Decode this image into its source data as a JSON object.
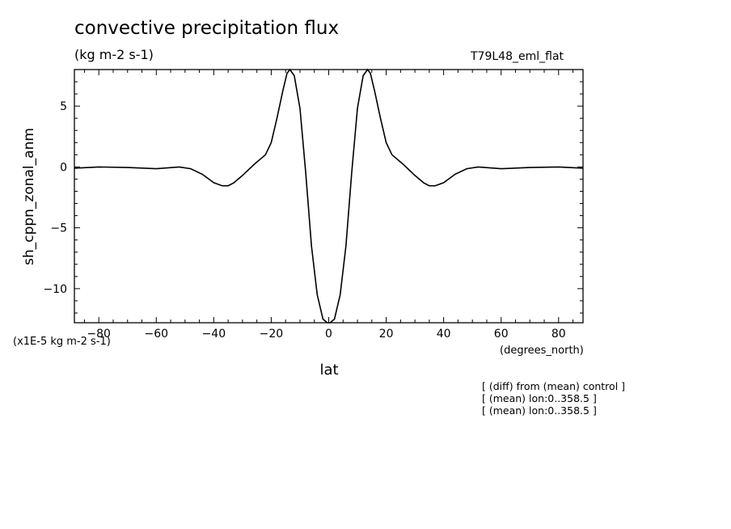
{
  "chart_data": {
    "type": "line",
    "title": "convective precipitation flux",
    "units": "(kg m-2 s-1)",
    "run_label": "T79L48_eml_flat",
    "ylabel": "sh_cppn_zonal_anm",
    "xlabel": "lat",
    "x_units": "(degrees_north)",
    "y_scale_note": "(x1E-5 kg m-2 s-1)",
    "xlim": [
      -88.5,
      88.5
    ],
    "ylim": [
      -12.8,
      8.0
    ],
    "x_ticks": [
      -80,
      -60,
      -40,
      -20,
      0,
      20,
      40,
      60,
      80
    ],
    "y_ticks": [
      -10,
      -5,
      0,
      5
    ],
    "grid": false,
    "series": [
      {
        "x": [
          -88.5,
          -80,
          -70,
          -60,
          -52,
          -48,
          -44,
          -40,
          -37,
          -35,
          -33,
          -30,
          -26,
          -22,
          -20,
          -18,
          -16,
          -14.5,
          -13.5,
          -12,
          -10,
          -8,
          -6,
          -4,
          -2,
          -0.5,
          0,
          0.5,
          2,
          4,
          6,
          8,
          10,
          12,
          13.5,
          14.5,
          16,
          18,
          20,
          22,
          26,
          30,
          33,
          35,
          37,
          40,
          44,
          48,
          52,
          60,
          70,
          80,
          88.5
        ],
        "y": [
          -0.1,
          0.0,
          -0.05,
          -0.15,
          0.0,
          -0.15,
          -0.6,
          -1.3,
          -1.55,
          -1.55,
          -1.3,
          -0.7,
          0.2,
          1.0,
          2.0,
          4.0,
          6.2,
          7.7,
          8.0,
          7.5,
          4.8,
          -0.5,
          -6.5,
          -10.5,
          -12.5,
          -12.85,
          -12.8,
          -12.85,
          -12.5,
          -10.5,
          -6.5,
          -0.5,
          4.8,
          7.5,
          8.0,
          7.7,
          6.2,
          4.0,
          2.0,
          1.0,
          0.2,
          -0.7,
          -1.3,
          -1.55,
          -1.55,
          -1.3,
          -0.6,
          -0.15,
          0.0,
          -0.15,
          -0.05,
          0.0,
          -0.1
        ]
      }
    ]
  },
  "notes": [
    "[ (diff) from (mean) control ]",
    "[ (mean) lon:0..358.5 ]",
    "[ (mean) lon:0..358.5 ]"
  ]
}
